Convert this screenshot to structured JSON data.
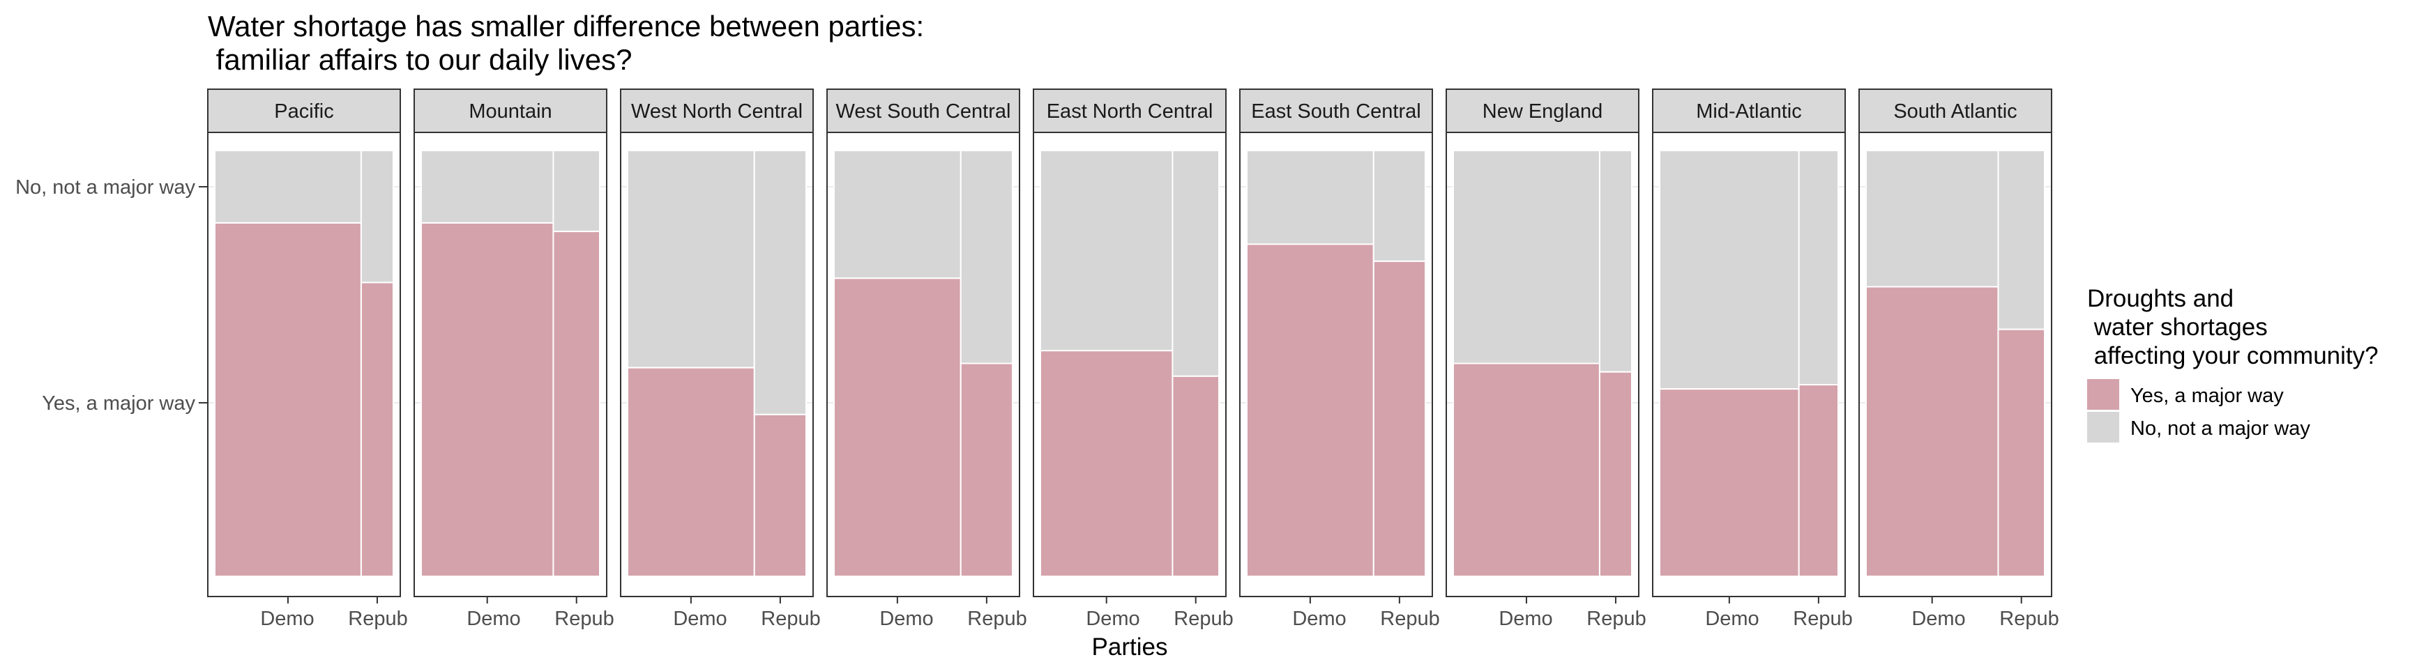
{
  "title_line1": "Water shortage has smaller difference between parties:",
  "title_line2": " familiar affairs to our daily lives?",
  "colors": {
    "yes": "#d4a2ab",
    "no": "#d6d6d6",
    "strip_bg": "#d9d9d9",
    "panel_border": "#333333",
    "gridline": "#ebebeb"
  },
  "legend": {
    "title_line1": "Droughts and",
    "title_line2": " water shortages",
    "title_line3": " affecting your community?",
    "items": [
      {
        "label": "Yes, a major way",
        "key": "yes"
      },
      {
        "label": "No, not a major way",
        "key": "no"
      }
    ]
  },
  "chart_data": {
    "type": "bar",
    "subtype": "faceted-mosaic",
    "title": "Water shortage has smaller difference between parties:\n familiar affairs to our daily lives?",
    "xlabel": "Parties",
    "ylabel": "",
    "x_ticks": [
      "Demo",
      "Repub"
    ],
    "y_ticks": [
      "Yes, a major way",
      "No, not a major way"
    ],
    "grid": true,
    "legend_position": "right",
    "series_names": [
      "Yes, a major way",
      "No, not a major way"
    ],
    "facets": [
      {
        "region": "Pacific",
        "demo_width": 0.82,
        "yes_share": {
          "Demo": 0.83,
          "Repub": 0.69
        }
      },
      {
        "region": "Mountain",
        "demo_width": 0.74,
        "yes_share": {
          "Demo": 0.83,
          "Repub": 0.81
        }
      },
      {
        "region": "West North Central",
        "demo_width": 0.71,
        "yes_share": {
          "Demo": 0.49,
          "Repub": 0.38
        }
      },
      {
        "region": "West South Central",
        "demo_width": 0.71,
        "yes_share": {
          "Demo": 0.7,
          "Repub": 0.5
        }
      },
      {
        "region": "East North Central",
        "demo_width": 0.74,
        "yes_share": {
          "Demo": 0.53,
          "Repub": 0.47
        }
      },
      {
        "region": "East South Central",
        "demo_width": 0.71,
        "yes_share": {
          "Demo": 0.78,
          "Repub": 0.74
        }
      },
      {
        "region": "New England",
        "demo_width": 0.82,
        "yes_share": {
          "Demo": 0.5,
          "Repub": 0.48
        }
      },
      {
        "region": "Mid-Atlantic",
        "demo_width": 0.78,
        "yes_share": {
          "Demo": 0.44,
          "Repub": 0.45
        }
      },
      {
        "region": "South Atlantic",
        "demo_width": 0.74,
        "yes_share": {
          "Demo": 0.68,
          "Repub": 0.58
        }
      }
    ]
  }
}
